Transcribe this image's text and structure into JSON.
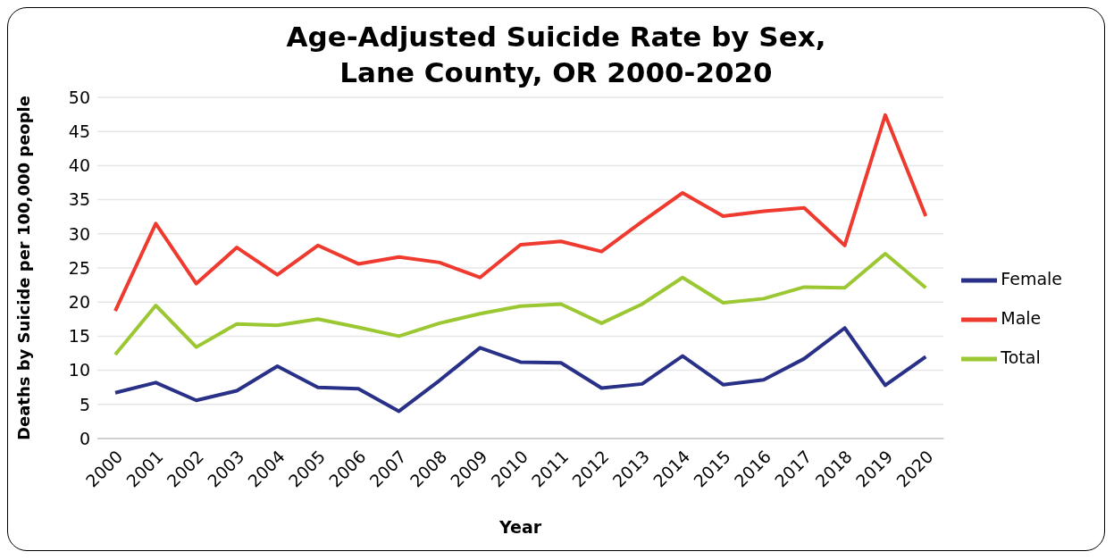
{
  "chart_data": {
    "type": "line",
    "title": "Age-Adjusted Suicide Rate by Sex,\nLane County, OR 2000-2020",
    "xlabel": "Year",
    "ylabel": "Deaths by Suicide per 100,000 people",
    "categories": [
      "2000",
      "2001",
      "2002",
      "2003",
      "2004",
      "2005",
      "2006",
      "2007",
      "2008",
      "2009",
      "2010",
      "2011",
      "2012",
      "2013",
      "2014",
      "2015",
      "2016",
      "2017",
      "2018",
      "2019",
      "2020"
    ],
    "series": [
      {
        "name": "Female",
        "color": "#283087",
        "values": [
          6.7,
          8.2,
          5.6,
          7.0,
          10.6,
          7.5,
          7.3,
          4.0,
          8.5,
          13.3,
          11.2,
          11.1,
          7.4,
          8.0,
          12.1,
          7.9,
          8.6,
          11.7,
          16.2,
          7.8,
          12.0
        ]
      },
      {
        "name": "Male",
        "color": "#ee3a2f",
        "values": [
          18.7,
          31.5,
          22.7,
          28.0,
          24.0,
          28.3,
          25.6,
          26.6,
          25.8,
          23.6,
          28.4,
          28.9,
          27.4,
          31.8,
          36.0,
          32.6,
          33.3,
          33.8,
          28.3,
          47.4,
          32.6
        ]
      },
      {
        "name": "Total",
        "color": "#9bc832",
        "values": [
          12.3,
          19.5,
          13.4,
          16.8,
          16.6,
          17.5,
          16.3,
          15.0,
          16.9,
          18.3,
          19.4,
          19.7,
          16.9,
          19.7,
          23.6,
          19.9,
          20.5,
          22.2,
          22.1,
          27.1,
          22.1
        ]
      }
    ],
    "ylim": [
      0,
      50
    ],
    "yticks": [
      0,
      5,
      10,
      15,
      20,
      25,
      30,
      35,
      40,
      45,
      50
    ],
    "grid": "y",
    "legend": "right",
    "marker": "none",
    "line_style": "solid"
  }
}
